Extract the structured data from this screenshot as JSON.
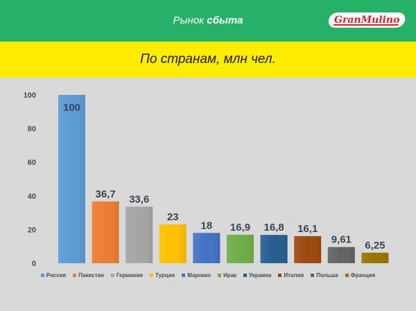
{
  "header": {
    "title_prefix": "Рынок ",
    "title_bold": "сбыта",
    "logo_text": "GranMulino",
    "bg_color": "#27b068"
  },
  "subtitle": {
    "text": "По странам, млн чел.",
    "bg_color": "#ffed00"
  },
  "chart_data": {
    "type": "bar",
    "title": "По странам, млн чел.",
    "categories": [
      "Россия",
      "Пакистан",
      "Германия",
      "Турция",
      "Марокко",
      "Ирак",
      "Украина",
      "Италия",
      "Польша",
      "Франция"
    ],
    "values": [
      100,
      36.7,
      33.6,
      23,
      18,
      16.9,
      16.8,
      16.1,
      9.61,
      6.25
    ],
    "data_labels": [
      "100",
      "36,7",
      "33,6",
      "23",
      "18",
      "16,9",
      "16,8",
      "16,1",
      "9,61",
      "6,25"
    ],
    "colors": [
      "#5b9bd5",
      "#ed7d31",
      "#a5a5a5",
      "#ffc000",
      "#4472c4",
      "#70ad47",
      "#255e91",
      "#9e480e",
      "#636363",
      "#997300"
    ],
    "y_ticks": [
      "0",
      "20",
      "40",
      "60",
      "80",
      "100"
    ],
    "ylim": [
      0,
      100
    ],
    "grid": false,
    "legend_position": "bottom"
  }
}
